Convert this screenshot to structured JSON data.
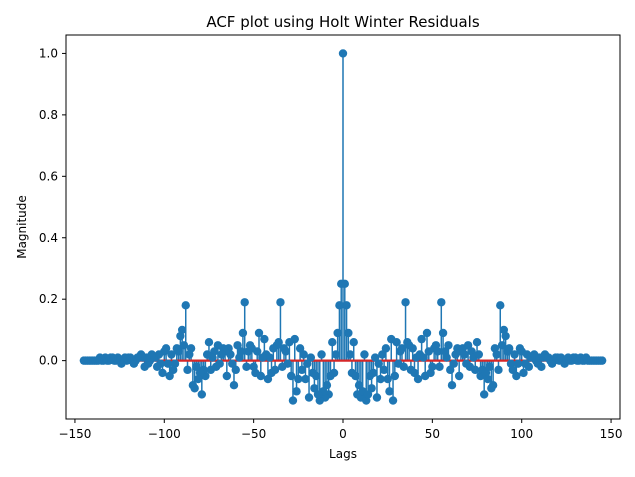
{
  "chart_data": {
    "type": "stem",
    "title": "ACF plot using Holt Winter Residuals",
    "xlabel": "Lags",
    "ylabel": "Magnitude",
    "xlim": [
      -155,
      155
    ],
    "ylim": [
      -0.19,
      1.06
    ],
    "xticks": [
      -150,
      -100,
      -50,
      0,
      50,
      100,
      150
    ],
    "yticks": [
      0.0,
      0.2,
      0.4,
      0.6,
      0.8,
      1.0
    ],
    "ytick_labels": [
      "0.0",
      "0.2",
      "0.4",
      "0.6",
      "0.8",
      "1.0"
    ],
    "colors": {
      "stem": "#1f77b4",
      "baseline": "#d62728"
    },
    "lags": [
      0,
      1,
      2,
      3,
      4,
      5,
      6,
      7,
      8,
      9,
      10,
      11,
      12,
      13,
      14,
      15,
      16,
      17,
      18,
      19,
      20,
      21,
      22,
      23,
      24,
      25,
      26,
      27,
      28,
      29,
      30,
      31,
      32,
      33,
      34,
      35,
      36,
      37,
      38,
      39,
      40,
      41,
      42,
      43,
      44,
      45,
      46,
      47,
      48,
      49,
      50,
      51,
      52,
      53,
      54,
      55,
      56,
      57,
      58,
      59,
      60,
      61,
      62,
      63,
      64,
      65,
      66,
      67,
      68,
      69,
      70,
      71,
      72,
      73,
      74,
      75,
      76,
      77,
      78,
      79,
      80,
      81,
      82,
      83,
      84,
      85,
      86,
      87,
      88,
      89,
      90,
      91,
      92,
      93,
      94,
      95,
      96,
      97,
      98,
      99,
      100,
      101,
      102,
      103,
      104,
      105,
      106,
      107,
      108,
      109,
      110,
      111,
      112,
      113,
      114,
      115,
      116,
      117,
      118,
      119,
      120,
      121,
      122,
      123,
      124,
      125,
      126,
      127,
      128,
      129,
      130,
      131,
      132,
      133,
      134,
      135,
      136,
      137,
      138,
      139,
      140,
      141,
      142,
      143,
      144,
      145
    ],
    "values": [
      1.0,
      0.25,
      0.18,
      0.09,
      0.02,
      -0.04,
      0.06,
      -0.05,
      -0.11,
      -0.08,
      -0.12,
      -0.1,
      0.02,
      -0.13,
      -0.11,
      -0.05,
      -0.09,
      -0.04,
      0.01,
      -0.12,
      -0.01,
      -0.06,
      0.02,
      -0.03,
      0.04,
      -0.06,
      -0.1,
      0.07,
      -0.13,
      -0.05,
      0.06,
      -0.01,
      0.03,
      0.04,
      -0.02,
      0.19,
      0.06,
      0.05,
      -0.03,
      0.04,
      -0.04,
      0.01,
      -0.06,
      0.02,
      0.07,
      0.01,
      -0.05,
      0.09,
      0.03,
      -0.04,
      -0.02,
      0.04,
      0.05,
      0.03,
      -0.02,
      0.19,
      0.09,
      0.03,
      0.01,
      0.05,
      -0.03,
      -0.08,
      -0.01,
      0.02,
      0.04,
      -0.05,
      0.03,
      0.04,
      0.02,
      -0.01,
      0.05,
      -0.02,
      0.03,
      0.01,
      -0.03,
      0.06,
      0.02,
      -0.05,
      -0.03,
      -0.11,
      -0.04,
      -0.06,
      -0.02,
      -0.09,
      -0.08,
      0.04,
      0.02,
      -0.03,
      0.18,
      0.05,
      0.1,
      0.08,
      0.03,
      0.04,
      -0.01,
      -0.03,
      0.02,
      -0.05,
      -0.01,
      0.04,
      0.03,
      -0.04,
      -0.01,
      0.02,
      -0.02,
      0.01,
      0.01,
      0.02,
      0.0,
      -0.01,
      0.01,
      -0.02,
      0.01,
      0.02,
      0.01,
      0.01,
      0.0,
      -0.01,
      0.0,
      0.01,
      0.01,
      0.0,
      0.01,
      0.0,
      -0.01,
      0.0,
      0.01,
      0.0,
      0.0,
      0.01,
      0.01,
      0.0,
      0.0,
      0.01,
      0.0,
      0.0,
      0.01,
      0.0,
      0.0,
      0.0,
      0.0,
      0.0,
      0.0,
      0.0,
      0.0,
      0.0
    ],
    "grid": false,
    "legend": "none"
  }
}
